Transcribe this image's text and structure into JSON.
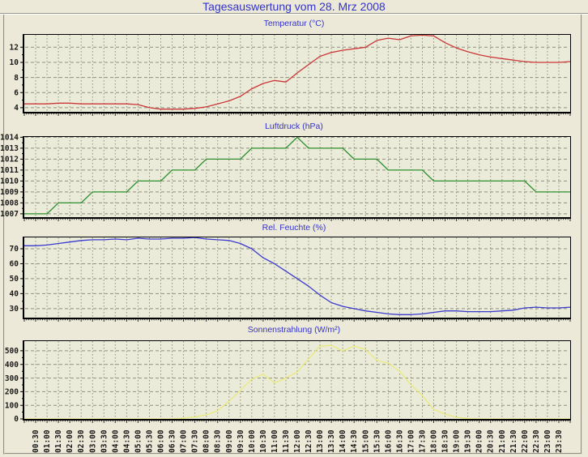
{
  "page": {
    "title": "Tagesauswertung vom 28. Mrz 2008",
    "background": "#ece9d8",
    "title_color": "#3333cc",
    "plot_background": "#ebebd9",
    "grid_color": "#90907e",
    "axis_color": "#000000",
    "tick_label_color": "#1a1a1a"
  },
  "x_axis": {
    "unit": "time",
    "step_minutes": 30,
    "labels": [
      "00:30",
      "01:00",
      "01:30",
      "02:00",
      "02:30",
      "03:00",
      "03:30",
      "04:00",
      "04:30",
      "05:00",
      "05:30",
      "06:00",
      "06:30",
      "07:00",
      "07:30",
      "08:00",
      "08:30",
      "09:00",
      "09:30",
      "10:00",
      "10:30",
      "11:00",
      "11:30",
      "12:00",
      "12:30",
      "13:00",
      "13:30",
      "14:00",
      "14:30",
      "15:00",
      "15:30",
      "16:00",
      "16:30",
      "17:00",
      "17:30",
      "18:00",
      "18:30",
      "19:00",
      "19:30",
      "20:00",
      "20:30",
      "21:00",
      "21:30",
      "22:00",
      "22:30",
      "23:00",
      "23:30"
    ]
  },
  "chart_data": [
    {
      "type": "line",
      "title": "Temperatur (°C)",
      "color": "#cc3838",
      "yticks": [
        4,
        6,
        8,
        10,
        12
      ],
      "ylim": [
        3.45,
        13.75
      ],
      "x_start": "00:00",
      "x_step_minutes": 30,
      "values": [
        4.5,
        4.5,
        4.5,
        4.6,
        4.6,
        4.5,
        4.5,
        4.5,
        4.5,
        4.5,
        4.4,
        4.0,
        3.8,
        3.8,
        3.8,
        3.9,
        4.1,
        4.5,
        4.9,
        5.5,
        6.5,
        7.2,
        7.6,
        7.4,
        8.6,
        9.7,
        10.8,
        11.3,
        11.6,
        11.8,
        12.0,
        12.9,
        13.2,
        13.0,
        13.5,
        13.6,
        13.5,
        12.6,
        11.9,
        11.4,
        11.0,
        10.7,
        10.5,
        10.3,
        10.1,
        10.0,
        10.0,
        10.0,
        10.1
      ]
    },
    {
      "type": "line",
      "title": "Luftdruck (hPa)",
      "color": "#2f9131",
      "yticks": [
        1007,
        1008,
        1009,
        1010,
        1011,
        1012,
        1013,
        1014
      ],
      "ylim": [
        1006.7,
        1014.1
      ],
      "x_start": "00:00",
      "x_step_minutes": 30,
      "values": [
        1007,
        1007,
        1007,
        1008,
        1008,
        1008,
        1009,
        1009,
        1009,
        1009,
        1010,
        1010,
        1010,
        1011,
        1011,
        1011,
        1012,
        1012,
        1012,
        1012,
        1013,
        1013,
        1013,
        1013,
        1014,
        1013,
        1013,
        1013,
        1013,
        1012,
        1012,
        1012,
        1011,
        1011,
        1011,
        1011,
        1010,
        1010,
        1010,
        1010,
        1010,
        1010,
        1010,
        1010,
        1010,
        1009,
        1009,
        1009,
        1009
      ]
    },
    {
      "type": "line",
      "title": "Rel. Feuchte (%)",
      "color": "#3b3bd0",
      "yticks": [
        30,
        40,
        50,
        60,
        70
      ],
      "ylim": [
        24,
        78.1
      ],
      "x_start": "00:00",
      "x_step_minutes": 30,
      "values": [
        72,
        72,
        72.5,
        73.5,
        74.5,
        75.5,
        76,
        76,
        76.5,
        76,
        77,
        76.5,
        76.5,
        77,
        77,
        77.5,
        76.5,
        76,
        75.5,
        73.5,
        70,
        64,
        60,
        55,
        50,
        45,
        39,
        34,
        31.5,
        30,
        28.5,
        27.5,
        26.5,
        26,
        26,
        26.5,
        27.5,
        28.5,
        28.5,
        28,
        28,
        28,
        28.5,
        29,
        30.5,
        31,
        30.5,
        30.5,
        31
      ]
    },
    {
      "type": "line",
      "title": "Sonnenstrahlung (W/m²)",
      "color": "#e9e97d",
      "yticks": [
        0,
        100,
        200,
        300,
        400,
        500
      ],
      "ylim": [
        0,
        577
      ],
      "x_start": "00:00",
      "x_step_minutes": 30,
      "values": [
        0,
        0,
        0,
        0,
        0,
        0,
        0,
        0,
        0,
        0,
        0,
        0,
        0,
        0,
        5,
        15,
        30,
        60,
        130,
        210,
        290,
        330,
        265,
        300,
        345,
        440,
        535,
        540,
        500,
        535,
        510,
        430,
        410,
        350,
        250,
        170,
        70,
        35,
        12,
        3,
        0,
        0,
        0,
        0,
        0,
        0,
        0,
        0,
        0
      ]
    }
  ]
}
